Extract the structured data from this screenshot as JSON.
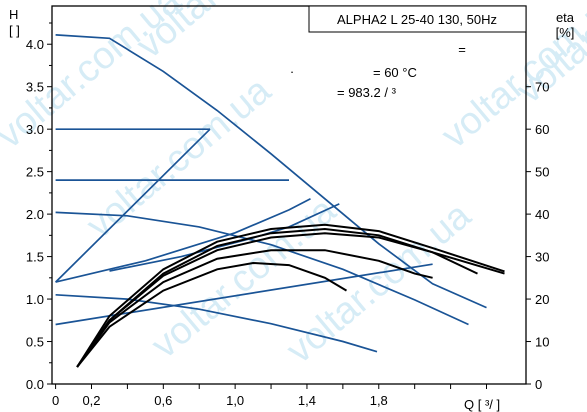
{
  "colors": {
    "pump_curve": "#1a5496",
    "efficiency_curve": "#000000",
    "frame": "#000000",
    "watermark": "#d6ecf6"
  },
  "watermarks": [
    "voltar.com.ua",
    "voltar.com.ua",
    "voltar.com.ua",
    "voltar.com.ua",
    "voltar.com.ua",
    "voltar.com.ua",
    "voltar.com.ua"
  ],
  "legend_box": {
    "model": "ALPHA2 L 25-40 130, 50Hz"
  },
  "conditions": {
    "line1": "=",
    "line2": "·",
    "temp": "= 60 °C",
    "density": "= 983.2   / ³"
  },
  "chart_data": {
    "type": "line",
    "xlabel": "Q [  ³/  ]",
    "ylabel_left": [
      "H",
      "[  ]"
    ],
    "ylabel_right": [
      "eta",
      "[%]"
    ],
    "x_ticks": [
      "0",
      "0,2",
      "0,6",
      "1,0",
      "1,4",
      "1,8"
    ],
    "x_tick_values": [
      0,
      0.2,
      0.6,
      1.0,
      1.4,
      1.8
    ],
    "y_ticks": [
      "0.0",
      "0.5",
      "1.0",
      "1.5",
      "2.0",
      "2.5",
      "3.0",
      "3.5",
      "4.0"
    ],
    "y_tick_values": [
      0,
      0.5,
      1.0,
      1.5,
      2.0,
      2.5,
      3.0,
      3.5,
      4.0
    ],
    "y2_ticks": [
      "0",
      "10",
      "20",
      "30",
      "40",
      "50",
      "60",
      "70"
    ],
    "y2_tick_values": [
      0,
      10,
      20,
      30,
      40,
      50,
      60,
      70
    ],
    "xlim": [
      -0.02,
      2.62
    ],
    "ylim": [
      0,
      4.45
    ],
    "y2lim": [
      0,
      89
    ],
    "grid": false,
    "head_series": [
      {
        "points": [
          [
            0,
            4.11
          ],
          [
            0.3,
            4.07
          ],
          [
            0.6,
            3.68
          ],
          [
            0.9,
            3.22
          ],
          [
            1.2,
            2.71
          ],
          [
            1.5,
            2.18
          ],
          [
            1.8,
            1.65
          ],
          [
            2.1,
            1.18
          ],
          [
            2.4,
            0.9
          ]
        ]
      },
      {
        "points": [
          [
            0,
            3.0
          ],
          [
            0.86,
            3.0
          ]
        ]
      },
      {
        "points": [
          [
            0,
            2.4
          ],
          [
            1.3,
            2.4
          ]
        ]
      },
      {
        "points": [
          [
            0,
            2.02
          ],
          [
            0.4,
            1.98
          ],
          [
            0.8,
            1.85
          ],
          [
            1.2,
            1.64
          ],
          [
            1.6,
            1.35
          ],
          [
            2.0,
            0.99
          ],
          [
            2.3,
            0.7
          ]
        ]
      },
      {
        "points": [
          [
            0,
            1.05
          ],
          [
            0.4,
            1.0
          ],
          [
            0.8,
            0.88
          ],
          [
            1.2,
            0.71
          ],
          [
            1.6,
            0.5
          ],
          [
            1.79,
            0.38
          ]
        ]
      },
      {
        "points": [
          [
            0,
            1.2
          ],
          [
            0.86,
            3.0
          ]
        ]
      },
      {
        "points": [
          [
            0,
            0.7
          ],
          [
            2.1,
            1.41
          ]
        ]
      },
      {
        "points": [
          [
            0,
            1.2
          ],
          [
            0.5,
            1.45
          ],
          [
            1.0,
            1.78
          ],
          [
            1.3,
            2.05
          ],
          [
            1.42,
            2.18
          ]
        ]
      },
      {
        "points": [
          [
            0.3,
            1.33
          ],
          [
            0.7,
            1.5
          ],
          [
            1.1,
            1.72
          ],
          [
            1.3,
            1.85
          ],
          [
            1.58,
            2.12
          ]
        ]
      }
    ],
    "efficiency_series": [
      {
        "points": [
          [
            0.12,
            4
          ],
          [
            0.3,
            16
          ],
          [
            0.6,
            27
          ],
          [
            0.9,
            33.5
          ],
          [
            1.2,
            36.5
          ],
          [
            1.5,
            37.5
          ],
          [
            1.8,
            36
          ],
          [
            2.1,
            32
          ],
          [
            2.5,
            26.5
          ]
        ]
      },
      {
        "points": [
          [
            0.12,
            4
          ],
          [
            0.3,
            15
          ],
          [
            0.6,
            26
          ],
          [
            0.9,
            32.5
          ],
          [
            1.2,
            35.5
          ],
          [
            1.5,
            36.5
          ],
          [
            1.8,
            35
          ],
          [
            2.1,
            31
          ],
          [
            2.5,
            26
          ]
        ]
      },
      {
        "points": [
          [
            0.12,
            4
          ],
          [
            0.3,
            15
          ],
          [
            0.6,
            25.5
          ],
          [
            0.9,
            31.5
          ],
          [
            1.2,
            34.5
          ],
          [
            1.5,
            35.5
          ],
          [
            1.8,
            34.5
          ],
          [
            2.1,
            31
          ],
          [
            2.35,
            26
          ]
        ]
      },
      {
        "points": [
          [
            0.12,
            4
          ],
          [
            0.3,
            14.5
          ],
          [
            0.6,
            24
          ],
          [
            0.9,
            29.5
          ],
          [
            1.2,
            31.5
          ],
          [
            1.5,
            31.5
          ],
          [
            1.8,
            29
          ],
          [
            2.0,
            26
          ],
          [
            2.1,
            25
          ]
        ]
      },
      {
        "points": [
          [
            0.12,
            4
          ],
          [
            0.3,
            13.5
          ],
          [
            0.6,
            22
          ],
          [
            0.9,
            27
          ],
          [
            1.1,
            28.5
          ],
          [
            1.3,
            28
          ],
          [
            1.5,
            25
          ],
          [
            1.62,
            22
          ]
        ]
      }
    ]
  }
}
